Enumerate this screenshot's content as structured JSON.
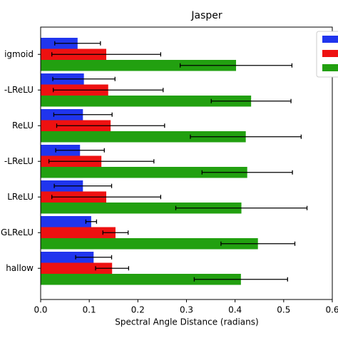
{
  "chart_data": {
    "type": "hbar",
    "title": "Jasper",
    "x_label": "Spectral Angle Distance (radians)",
    "categories": [
      "igmoid",
      "-LReLU",
      "ReLU",
      "-LReLU",
      "LReLU",
      "GLReLU",
      "hallow"
    ],
    "series": [
      {
        "color": "#2035ee",
        "values": [
          0.076,
          0.089,
          0.087,
          0.081,
          0.087,
          0.104,
          0.109
        ],
        "errors": [
          0.047,
          0.064,
          0.06,
          0.05,
          0.059,
          0.011,
          0.037
        ]
      },
      {
        "color": "#ee1111",
        "values": [
          0.135,
          0.139,
          0.144,
          0.125,
          0.135,
          0.154,
          0.147
        ],
        "errors": [
          0.112,
          0.113,
          0.111,
          0.108,
          0.112,
          0.026,
          0.034
        ]
      },
      {
        "color": "#22a010",
        "values": [
          0.402,
          0.433,
          0.422,
          0.425,
          0.413,
          0.447,
          0.412
        ],
        "errors": [
          0.115,
          0.082,
          0.114,
          0.093,
          0.135,
          0.076,
          0.096
        ]
      }
    ],
    "xlim": [
      0,
      0.6
    ],
    "xticks": [
      {
        "value": 0,
        "label": "0.0"
      },
      0.1,
      0.2,
      0.3,
      0.4,
      0.5,
      0.6
    ]
  }
}
